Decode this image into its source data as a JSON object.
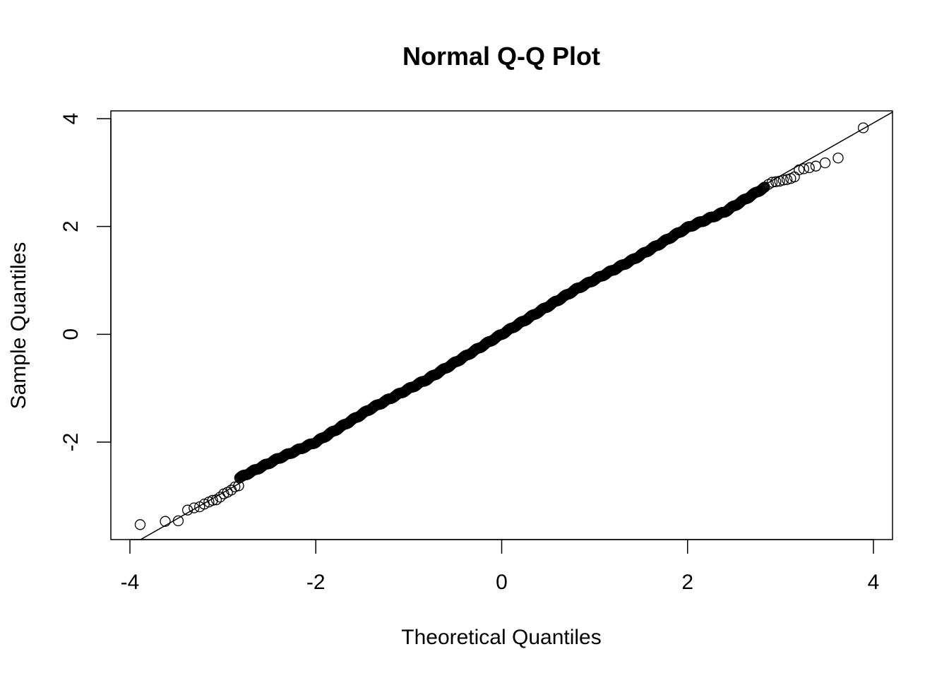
{
  "chart_data": {
    "type": "scatter",
    "title": "Normal Q-Q Plot",
    "xlabel": "Theoretical Quantiles",
    "ylabel": "Sample Quantiles",
    "xlim": [
      -4.1,
      4.1
    ],
    "ylim": [
      -3.8,
      4.15
    ],
    "x_ticks": [
      -4,
      -2,
      0,
      2,
      4
    ],
    "x_tick_labels": [
      "-4",
      "-2",
      "0",
      "2",
      "4"
    ],
    "y_ticks": [
      -2,
      0,
      2,
      4
    ],
    "y_tick_labels": [
      "-2",
      "0",
      "2",
      "4"
    ],
    "grid": false,
    "legend": "none",
    "marker": "open-circle",
    "colors": {
      "marker": "#000000",
      "line": "#000000",
      "background": "#ffffff"
    },
    "reference_line": {
      "intercept": 0.0,
      "slope": 0.98
    },
    "tail_points": {
      "x": [
        -3.89,
        -3.62,
        -3.48,
        -3.38,
        -3.31,
        -3.25,
        -3.2,
        -3.15,
        -3.11,
        -3.07,
        -3.03,
        -2.99,
        -2.95,
        -2.91,
        -2.87,
        -2.83,
        2.83,
        2.87,
        2.91,
        2.95,
        2.99,
        3.03,
        3.07,
        3.11,
        3.15,
        3.2,
        3.25,
        3.31,
        3.38,
        3.48,
        3.62,
        3.89
      ],
      "y": [
        -3.53,
        -3.47,
        -3.46,
        -3.26,
        -3.22,
        -3.2,
        -3.15,
        -3.11,
        -3.08,
        -3.07,
        -3.02,
        -2.96,
        -2.93,
        -2.89,
        -2.83,
        -2.81,
        2.73,
        2.78,
        2.82,
        2.83,
        2.84,
        2.86,
        2.87,
        2.89,
        2.92,
        3.05,
        3.07,
        3.09,
        3.12,
        3.18,
        3.27,
        3.83
      ]
    },
    "body": {
      "n_points": 700,
      "x_range": [
        -2.82,
        2.82
      ],
      "slope": 0.98,
      "deviations": {
        "x": [
          -2.8,
          -2.4,
          -2.0,
          -1.4,
          -0.8,
          0.0,
          0.8,
          1.4,
          2.0,
          2.4,
          2.8
        ],
        "dy": [
          0.1,
          0.05,
          -0.04,
          0.0,
          -0.05,
          0.0,
          0.05,
          0.0,
          0.02,
          -0.08,
          -0.05
        ]
      }
    }
  }
}
